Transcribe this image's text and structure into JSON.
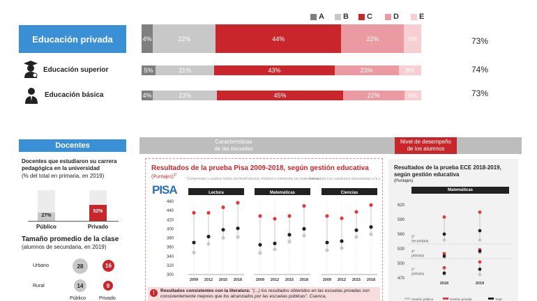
{
  "legend": [
    {
      "letter": "A",
      "color": "#7f7f7f"
    },
    {
      "letter": "B",
      "color": "#c8c8c8"
    },
    {
      "letter": "C",
      "color": "#c9262c"
    },
    {
      "letter": "D",
      "color": "#ea9aa0"
    },
    {
      "letter": "E",
      "color": "#f7cfd2"
    }
  ],
  "rows": [
    {
      "label": "Educación privada",
      "segments": [
        "4%",
        "22%",
        "44%",
        "22%",
        "6%"
      ],
      "widths": [
        4,
        22,
        44,
        22,
        6
      ],
      "total": "73%"
    },
    {
      "label": "Educación superior",
      "segments": [
        "5%",
        "21%",
        "43%",
        "23%",
        "8%"
      ],
      "widths": [
        5,
        21,
        43,
        23,
        8
      ],
      "total": "74%"
    },
    {
      "label": "Educación básica",
      "segments": [
        "4%",
        "23%",
        "45%",
        "22%",
        "6%"
      ],
      "widths": [
        4,
        23,
        45,
        22,
        6
      ],
      "total": "73%"
    }
  ],
  "docentes": {
    "header": "Docentes",
    "title": "Docentes que estudiaron su carrera pedagógica en la universidad",
    "subtitle": "(% del total en primaria, en 2019)",
    "bars": [
      {
        "label": "Público",
        "value": "27%",
        "fraction": 0.27
      },
      {
        "label": "Privado",
        "value": "52%",
        "fraction": 0.52
      }
    ],
    "class_title": "Tamaño promedio de la clase",
    "class_subtitle": "(alumnos de secundaria, en 2019)",
    "class_rows": [
      {
        "label": "Urbano",
        "publico": "28",
        "privado": "16"
      },
      {
        "label": "Rural",
        "publico": "14",
        "privado": "9"
      }
    ],
    "col_labels": [
      "Público",
      "Privado"
    ]
  },
  "headers": {
    "caracteristicas": "Características de las escuelas",
    "nivel": "Nivel de desempeño de los alumnos"
  },
  "pisa": {
    "title": "Resultados de la prueba Pisa 2009-2018, según gestión educativa",
    "unit": "(Puntajes)",
    "unit_sup": "1/",
    "logo": "PISA",
    "groups": [
      {
        "desc": "Comprender y analizar textos escritos",
        "name": "Lectura",
        "publico": [
          348,
          367,
          380,
          382
        ],
        "privado": [
          435,
          435,
          447,
          457
        ],
        "total": [
          370,
          383,
          398,
          401
        ]
      },
      {
        "desc": "Formular, emplear e interpretar las matemáticas",
        "name": "Matemáticas",
        "publico": [
          347,
          355,
          372,
          385
        ],
        "privado": [
          428,
          422,
          428,
          450
        ],
        "total": [
          365,
          368,
          387,
          400
        ]
      },
      {
        "desc": "Interactuar con cuestiones relacionadas a la ciencia",
        "name": "Ciencias",
        "publico": [
          353,
          358,
          382,
          388
        ],
        "privado": [
          428,
          423,
          437,
          452
        ],
        "total": [
          370,
          373,
          397,
          404
        ]
      }
    ],
    "years": [
      "2009",
      "2012",
      "2015",
      "2018"
    ],
    "yticks": [
      "460",
      "440",
      "420",
      "400",
      "380",
      "360",
      "340",
      "320",
      "300"
    ],
    "note_bold": "Resultados consistentes con la literatura:",
    "note_text": " \"(...) los resultados obtenidos en las escuelas privadas son consistentemente mejores que los alcanzados por las escuelas públicas\". Cuenca,"
  },
  "ece": {
    "title": "Resultados de la prueba ECE 2018-2019, según gestión educativa",
    "unit": "(Puntajes)",
    "chip": "Matemáticas",
    "yticks": [
      "620",
      "590",
      "560",
      "530",
      "500",
      "470"
    ],
    "levels": [
      "2° secundaria",
      "4° primaria",
      "2° primaria"
    ],
    "years": [
      "2018",
      "2019"
    ],
    "legend": [
      "Gestión pública",
      "Gestión privada",
      "Total"
    ]
  }
}
